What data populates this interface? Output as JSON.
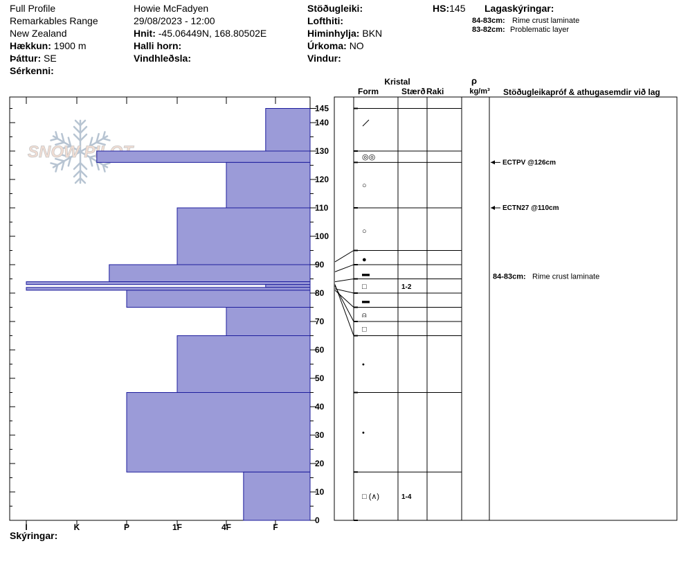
{
  "header": {
    "profile_type": "Full Profile",
    "location": "Remarkables Range",
    "country": "New Zealand",
    "elevation_label": "Hækkun:",
    "elevation_value": "1900 m",
    "aspect_label": "Þáttur:",
    "aspect_value": "SE",
    "features_label": "Sérkenni:",
    "observer": "Howie McFadyen",
    "datetime": "29/08/2023 - 12:00",
    "coords_label": "Hnit:",
    "coords_value": "-45.06449N, 168.80502E",
    "slope_label": "Halli horn:",
    "wind_loading_label": "Vindhleðsla:",
    "stability_label": "Stöðugleiki:",
    "air_temp_label": "Lofthiti:",
    "sky_label": "Himinhylja:",
    "sky_value": "BKN",
    "precip_label": "Úrkoma:",
    "precip_value": "NO",
    "wind_label": "Vindur:",
    "hs_label": "HS:",
    "hs_value": "145",
    "layer_notes_title": "Lagaskýringar:",
    "layer_notes": [
      {
        "range": "84-83cm:",
        "text": "Rime crust laminate"
      },
      {
        "range": "83-82cm:",
        "text": "Problematic layer"
      }
    ]
  },
  "columns": {
    "crystal": "Kristal",
    "form": "Form",
    "size": "Stærð",
    "moisture": "Raki",
    "density_symbol": "ρ",
    "density_unit": "kg/m³",
    "stability_notes": "Stöðugleikapróf & athugasemdir við lag"
  },
  "logo": {
    "text": "SNOW PILOT"
  },
  "hardness_axis": [
    "I",
    "K",
    "P",
    "1F",
    "4F",
    "F"
  ],
  "depth_axis": {
    "max": 145,
    "labels": [
      145,
      140,
      130,
      120,
      110,
      100,
      90,
      80,
      70,
      60,
      50,
      40,
      30,
      20,
      10,
      0
    ]
  },
  "chart_data": {
    "type": "bar",
    "title": "",
    "orientation": "horizontal",
    "ylabel": "",
    "ylim": [
      0,
      145
    ],
    "x_scale": "hand hardness (F=0, 4F=1, 1F=2, P=3, K=4, I=5)",
    "layers": [
      {
        "top": 145,
        "bottom": 130,
        "hardness": 0.2
      },
      {
        "top": 130,
        "bottom": 126,
        "hardness": 3.6
      },
      {
        "top": 126,
        "bottom": 110,
        "hardness": 1.0
      },
      {
        "top": 110,
        "bottom": 90,
        "hardness": 2.0
      },
      {
        "top": 90,
        "bottom": 84,
        "hardness": 3.35
      },
      {
        "top": 84,
        "bottom": 83,
        "hardness": 5.0
      },
      {
        "top": 83,
        "bottom": 82,
        "hardness": 0.2
      },
      {
        "top": 82,
        "bottom": 81,
        "hardness": 5.0
      },
      {
        "top": 81,
        "bottom": 75,
        "hardness": 3.0
      },
      {
        "top": 75,
        "bottom": 65,
        "hardness": 1.0
      },
      {
        "top": 65,
        "bottom": 45,
        "hardness": 2.0
      },
      {
        "top": 45,
        "bottom": 17,
        "hardness": 3.0
      },
      {
        "top": 17,
        "bottom": 0,
        "hardness": 0.65
      }
    ]
  },
  "layer_boundaries": [
    145,
    130,
    126,
    110,
    95,
    90,
    85,
    80,
    75,
    70,
    65,
    45,
    17,
    0
  ],
  "crystal_rows": [
    {
      "depth": 140,
      "form": "⁄",
      "size": "",
      "kind": "ppgp"
    },
    {
      "depth": 128,
      "form": "◎◎",
      "size": "",
      "kind": "text"
    },
    {
      "depth": 118,
      "form": "○",
      "size": "",
      "kind": "text"
    },
    {
      "depth": 102,
      "form": "○",
      "size": "",
      "kind": "text"
    },
    {
      "depth": 92,
      "form": "●",
      "size": "",
      "kind": "text"
    },
    {
      "depth": 87,
      "form": "▬",
      "size": "",
      "kind": "text"
    },
    {
      "depth": 82.5,
      "form": "□",
      "size": "1-2",
      "kind": "text"
    },
    {
      "depth": 77.5,
      "form": "▬",
      "size": "",
      "kind": "text"
    },
    {
      "depth": 72.5,
      "form": "⍝",
      "size": "",
      "kind": "text"
    },
    {
      "depth": 67.5,
      "form": "□",
      "size": "",
      "kind": "text"
    },
    {
      "depth": 55,
      "form": "•",
      "size": "",
      "kind": "text"
    },
    {
      "depth": 31,
      "form": "•",
      "size": "",
      "kind": "text"
    },
    {
      "depth": 8.5,
      "form": "□ (∧)",
      "size": "1-4",
      "kind": "text"
    }
  ],
  "tests": [
    {
      "depth": 126,
      "label": "ECTPV @126cm"
    },
    {
      "depth": 110,
      "label": "ECTN27 @110cm"
    }
  ],
  "layer_comments": [
    {
      "depth": 86,
      "range": "84-83cm:",
      "text": "Rime crust laminate"
    }
  ],
  "footer": {
    "legend_label": "Skýringar:"
  },
  "colors": {
    "bar_fill": "#9b9bd8",
    "bar_stroke": "#1c1c9c",
    "logo": "#c9d6e3"
  }
}
